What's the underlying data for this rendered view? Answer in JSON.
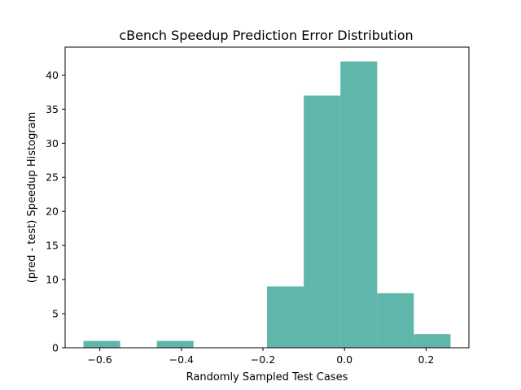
{
  "chart_data": {
    "type": "bar",
    "title": "cBench Speedup Prediction Error Distribution",
    "xlabel": "Randomly Sampled Test Cases",
    "ylabel": "(pred - test) Speedup Histogram",
    "bin_edges": [
      -0.64,
      -0.55,
      -0.46,
      -0.37,
      -0.28,
      -0.19,
      -0.1,
      -0.01,
      0.08,
      0.17,
      0.26
    ],
    "values": [
      1,
      0,
      1,
      0,
      0,
      9,
      37,
      42,
      8,
      2
    ],
    "xlim": [
      -0.685,
      0.305
    ],
    "ylim": [
      0,
      44.1
    ],
    "x_ticks": [
      -0.6,
      -0.4,
      -0.2,
      0.0,
      0.2
    ],
    "x_tick_labels": [
      "−0.6",
      "−0.4",
      "−0.2",
      "0.0",
      "0.2"
    ],
    "y_ticks": [
      0,
      5,
      10,
      15,
      20,
      25,
      30,
      35,
      40
    ],
    "y_tick_labels": [
      "0",
      "5",
      "10",
      "15",
      "20",
      "25",
      "30",
      "35",
      "40"
    ],
    "bar_color": "#5fb6ab",
    "grid": false,
    "legend": "none"
  }
}
